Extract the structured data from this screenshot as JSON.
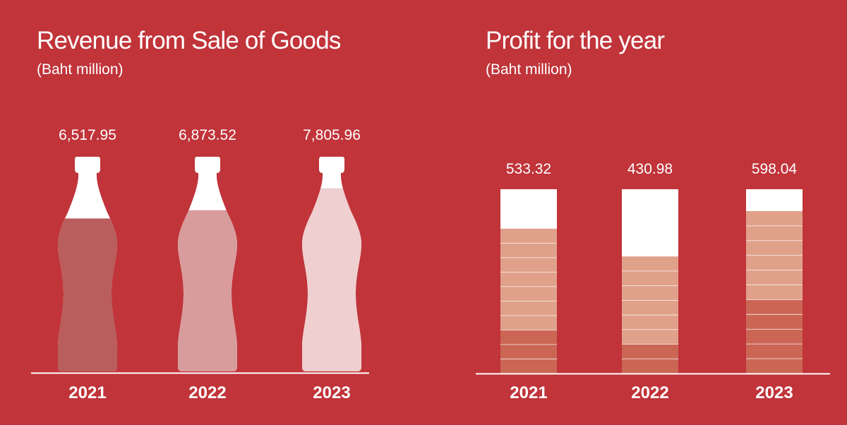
{
  "colors": {
    "background": "#c0343a",
    "white": "#ffffff",
    "bottle_fill_2021": "#b95d5d",
    "bottle_fill_2022": "#d99c9c",
    "bottle_fill_2023": "#efcfcf",
    "profit_light": "#e0a08a",
    "profit_dark": "#cb6655"
  },
  "chart_data": [
    {
      "type": "bar",
      "style": "bottle-fill pictograph",
      "title": "Revenue from Sale of Goods",
      "subtitle": "(Baht million)",
      "categories": [
        "2021",
        "2022",
        "2023"
      ],
      "values": [
        6517.95,
        6873.52,
        7805.96
      ],
      "data_labels": [
        "6,517.95",
        "6,873.52",
        "7,805.96"
      ],
      "grid": false,
      "legend": "none"
    },
    {
      "type": "bar",
      "style": "stacked-segment columns",
      "title": "Profit for the year",
      "subtitle": "(Baht million)",
      "categories": [
        "2021",
        "2022",
        "2023"
      ],
      "values": [
        533.32,
        430.98,
        598.04
      ],
      "data_labels": [
        "533.32",
        "430.98",
        "598.04"
      ],
      "grid": false,
      "legend": "none"
    }
  ]
}
